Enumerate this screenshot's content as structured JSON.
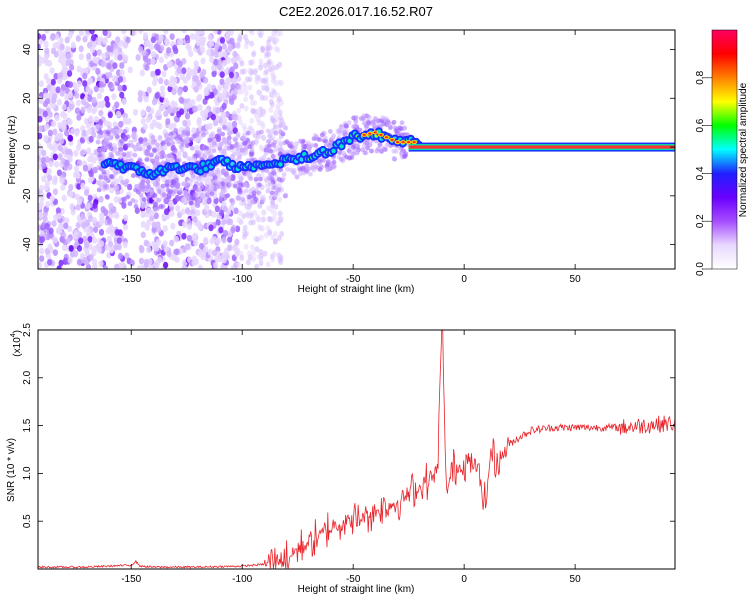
{
  "title": "C2E2.2026.017.16.52.R07",
  "chart_data": [
    {
      "type": "heatmap",
      "xlabel": "Height of straight line (km)",
      "ylabel": "Frequency (Hz)",
      "xlim": [
        -192,
        95
      ],
      "ylim": [
        -50,
        48
      ],
      "xticks": [
        "-150",
        "-100",
        "-50",
        "0",
        "50"
      ],
      "xtick_values": [
        -150,
        -100,
        -50,
        0,
        50
      ],
      "yticks": [
        "40",
        "20",
        "0",
        "-20",
        "-40"
      ],
      "ytick_values": [
        40,
        20,
        0,
        -20,
        -40
      ],
      "ridge": {
        "x": [
          -160,
          -150,
          -140,
          -130,
          -120,
          -110,
          -100,
          -90,
          -80,
          -70,
          -60,
          -50,
          -40,
          -30,
          -20,
          -10,
          0,
          10,
          20,
          40,
          60,
          95
        ],
        "freq": [
          -6,
          -9,
          -11,
          -8,
          -9,
          -6,
          -9,
          -8,
          -5,
          -4,
          -1,
          4,
          6,
          2,
          2,
          1,
          0,
          0,
          0,
          0,
          0,
          0
        ]
      },
      "colorbar": {
        "label": "Normalized spectral amplitude",
        "ticks": [
          "0.0",
          "0.2",
          "0.4",
          "0.6",
          "0.8"
        ],
        "tick_values": [
          0.0,
          0.2,
          0.4,
          0.6,
          0.8
        ],
        "range": [
          0,
          1
        ],
        "colors": [
          "#ffffff",
          "#e9d8ff",
          "#a64dff",
          "#6a00ff",
          "#2020ff",
          "#00ffff",
          "#00ff00",
          "#ffff00",
          "#ff8000",
          "#ff0000",
          "#ff0060"
        ]
      }
    },
    {
      "type": "line",
      "xlabel": "Height of straight line (km)",
      "ylabel": "SNR (10 * v/v)",
      "scale_label": "(x10",
      "scale_exp": "4",
      "scale_close": ")",
      "xlim": [
        -192,
        95
      ],
      "ylim": [
        0,
        2.5
      ],
      "xticks": [
        "-150",
        "-100",
        "-50",
        "0",
        "50"
      ],
      "xtick_values": [
        -150,
        -100,
        -50,
        0,
        50
      ],
      "yticks": [
        "0.5",
        "1.0",
        "1.5",
        "2.0",
        "2.5"
      ],
      "ytick_values": [
        0.5,
        1.0,
        1.5,
        2.0,
        2.5
      ],
      "series": [
        {
          "name": "SNR",
          "color": "#e8232a",
          "x": [
            -192,
            -170,
            -160,
            -150,
            -148,
            -146,
            -140,
            -120,
            -100,
            -90,
            -80,
            -75,
            -70,
            -65,
            -60,
            -55,
            -50,
            -45,
            -40,
            -35,
            -30,
            -25,
            -20,
            -15,
            -12,
            -10,
            -8,
            -5,
            0,
            5,
            10,
            12,
            15,
            20,
            25,
            30,
            40,
            50,
            60,
            70,
            80,
            90,
            95
          ],
          "y": [
            0.02,
            0.02,
            0.03,
            0.04,
            0.08,
            0.03,
            0.02,
            0.02,
            0.03,
            0.05,
            0.12,
            0.2,
            0.28,
            0.35,
            0.45,
            0.5,
            0.5,
            0.55,
            0.6,
            0.65,
            0.7,
            0.78,
            0.85,
            0.95,
            1.0,
            2.5,
            0.8,
            1.05,
            1.08,
            1.1,
            0.7,
            1.25,
            1.1,
            1.3,
            1.38,
            1.45,
            1.48,
            1.48,
            1.48,
            1.48,
            1.5,
            1.52,
            1.52
          ]
        }
      ]
    }
  ]
}
